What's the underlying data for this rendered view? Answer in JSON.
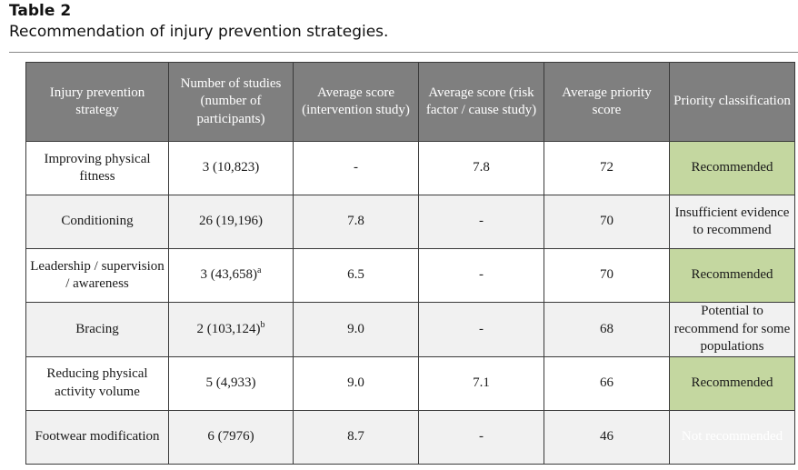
{
  "caption": {
    "label": "Table 2",
    "title": "Recommendation of injury prevention strategies."
  },
  "table": {
    "headers": [
      "Injury prevention strategy",
      "Number of studies (number of participants)",
      "Average score (intervention study)",
      "Average score (risk factor / cause study)",
      "Average priority score",
      "Priority classification"
    ],
    "rows": [
      {
        "strategy": "Improving physical fitness",
        "studies": "3 (10,823)",
        "studies_sup": "",
        "intervention": "-",
        "risk": "7.8",
        "priority": "72",
        "classification": "Recommended"
      },
      {
        "strategy": "Conditioning",
        "studies": "26 (19,196)",
        "studies_sup": "",
        "intervention": "7.8",
        "risk": "-",
        "priority": "70",
        "classification": "Insufficient evidence to recommend"
      },
      {
        "strategy": "Leadership / supervision / awareness",
        "studies": "3 (43,658)",
        "studies_sup": "a",
        "intervention": "6.5",
        "risk": "-",
        "priority": "70",
        "classification": "Recommended"
      },
      {
        "strategy": "Bracing",
        "studies": "2 (103,124)",
        "studies_sup": "b",
        "intervention": "9.0",
        "risk": "-",
        "priority": "68",
        "classification": "Potential to recommend for some populations"
      },
      {
        "strategy": "Reducing physical activity volume",
        "studies": "5 (4,933)",
        "studies_sup": "",
        "intervention": "9.0",
        "risk": "7.1",
        "priority": "66",
        "classification": "Recommended"
      },
      {
        "strategy": "Footwear modification",
        "studies": "6 (7976)",
        "studies_sup": "",
        "intervention": "8.7",
        "risk": "-",
        "priority": "46",
        "classification": "Not recommended"
      }
    ]
  },
  "colors": {
    "header_bg": "#7f7f7f",
    "recommended": "#c4d7a0",
    "insufficient": "#bfbfbf",
    "potential": "#ffc000",
    "not_recommended": "#953735"
  }
}
